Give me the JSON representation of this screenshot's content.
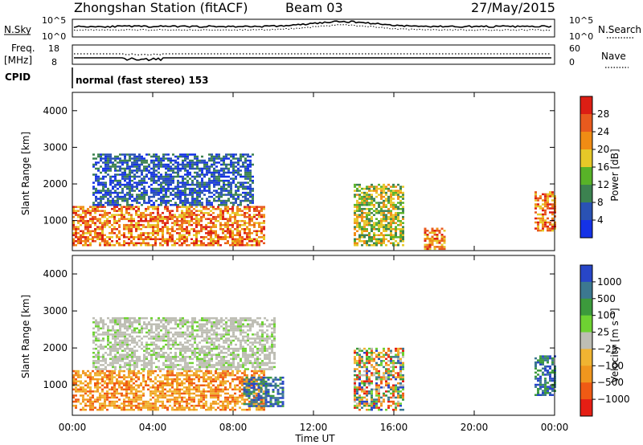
{
  "header": {
    "station": "Zhongshan Station (fitACF)",
    "beam": "Beam 03",
    "date": "27/May/2015"
  },
  "sky_panel": {
    "left_label": "N.Sky",
    "left_ticks": [
      "10^5",
      "10^0"
    ],
    "right_ticks": [
      "10^5",
      "10^0"
    ],
    "right_label": "N.Search"
  },
  "freq_panel": {
    "left_label_1": "Freq.",
    "left_label_2": "[MHz]",
    "left_ticks": [
      "18",
      "8"
    ],
    "right_ticks": [
      "60",
      "0"
    ],
    "right_label": "Nave"
  },
  "cpid_panel": {
    "left_label": "CPID",
    "mode_text": "normal (fast stereo) 153"
  },
  "x_ticks": [
    "00:00",
    "04:00",
    "08:00",
    "12:00",
    "16:00",
    "20:00",
    "00:00"
  ],
  "x_label": "Time UT",
  "colors": {
    "power": [
      "#1432e6",
      "#2a52b4",
      "#3c8250",
      "#58b228",
      "#e6c828",
      "#f08c14",
      "#e85a1e",
      "#dc1e14"
    ],
    "velocity": [
      "#e61e14",
      "#f05a14",
      "#f0961e",
      "#f0b432",
      "#bebeb4",
      "#6ed232",
      "#3c9a3c",
      "#3c7890",
      "#2846c8"
    ]
  },
  "chart_data": [
    {
      "type": "heatmap",
      "title": "",
      "xlabel": "Time UT",
      "ylabel": "Slant Range [km]",
      "xlim": [
        "00:00",
        "24:00"
      ],
      "ylim": [
        180,
        4500
      ],
      "yticks": [
        "1000",
        "2000",
        "3000",
        "4000"
      ],
      "colorbar": {
        "label": "Power [dB]",
        "ticks": [
          "28",
          "24",
          "20",
          "16",
          "12",
          "8",
          "4"
        ]
      },
      "regions": [
        {
          "t_start": "00:00",
          "t_end": "09:30",
          "range_km": [
            300,
            1400
          ],
          "level": "high",
          "note": "red/orange band"
        },
        {
          "t_start": "01:00",
          "t_end": "09:00",
          "range_km": [
            1400,
            2800
          ],
          "level": "low",
          "note": "blue scatter"
        },
        {
          "t_start": "14:00",
          "t_end": "16:30",
          "range_km": [
            300,
            2000
          ],
          "level": "medium"
        },
        {
          "t_start": "17:30",
          "t_end": "18:30",
          "range_km": [
            200,
            800
          ],
          "level": "high"
        },
        {
          "t_start": "23:00",
          "t_end": "24:00",
          "range_km": [
            700,
            1800
          ],
          "level": "high"
        }
      ]
    },
    {
      "type": "heatmap",
      "title": "",
      "xlabel": "Time UT",
      "ylabel": "Slant Range [km]",
      "xlim": [
        "00:00",
        "24:00"
      ],
      "ylim": [
        180,
        4500
      ],
      "yticks": [
        "1000",
        "2000",
        "3000",
        "4000"
      ],
      "colorbar": {
        "label": "Velocity [m s⁻¹]",
        "ticks": [
          "1000",
          "500",
          "100",
          "25",
          "−25",
          "−100",
          "−500",
          "−1000"
        ]
      },
      "regions": [
        {
          "t_start": "00:00",
          "t_end": "09:30",
          "range_km": [
            300,
            1400
          ],
          "level": "negative",
          "note": "orange (−100 to −500)"
        },
        {
          "t_start": "01:00",
          "t_end": "10:00",
          "range_km": [
            1400,
            2800
          ],
          "level": "near-zero",
          "note": "grey"
        },
        {
          "t_start": "08:30",
          "t_end": "10:30",
          "range_km": [
            400,
            1200
          ],
          "level": "positive",
          "note": "blue"
        },
        {
          "t_start": "14:00",
          "t_end": "16:30",
          "range_km": [
            300,
            2000
          ],
          "level": "mixed"
        },
        {
          "t_start": "23:00",
          "t_end": "24:00",
          "range_km": [
            700,
            1800
          ],
          "level": "positive"
        }
      ]
    }
  ]
}
